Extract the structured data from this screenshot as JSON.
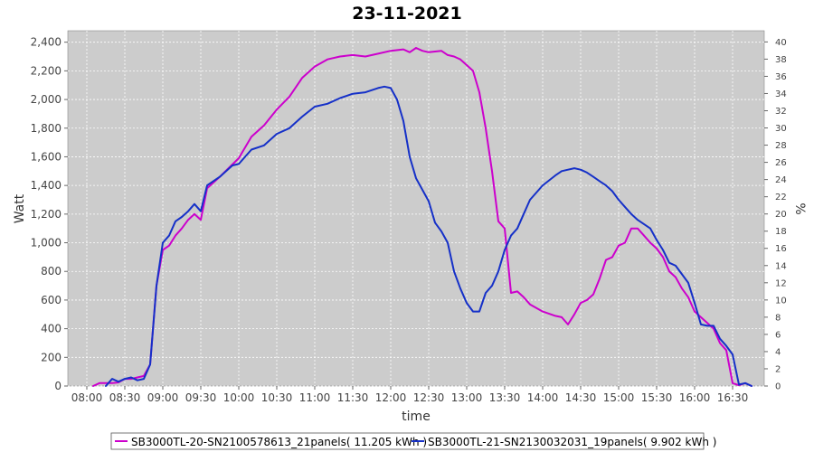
{
  "chart_data": {
    "type": "line",
    "title": "23-11-2021",
    "xlabel": "time",
    "ylabel": "Watt",
    "y2label": "%",
    "xlim": [
      "07:45",
      "16:55"
    ],
    "x_ticks": [
      "08:00",
      "08:30",
      "09:00",
      "09:30",
      "10:00",
      "10:30",
      "11:00",
      "11:30",
      "12:00",
      "12:30",
      "13:00",
      "13:30",
      "14:00",
      "14:30",
      "15:00",
      "15:30",
      "16:00",
      "16:30"
    ],
    "ylim": [
      0,
      2480
    ],
    "y_ticks": [
      "0",
      "200",
      "400",
      "600",
      "800",
      "1,000",
      "1,200",
      "1,400",
      "1,600",
      "1,800",
      "2,000",
      "2,200",
      "2,400"
    ],
    "y2lim": [
      0,
      41.3
    ],
    "y2_ticks": [
      "0",
      "2",
      "4",
      "6",
      "8",
      "10",
      "12",
      "14",
      "16",
      "18",
      "20",
      "22",
      "24",
      "26",
      "28",
      "30",
      "32",
      "34",
      "36",
      "38",
      "40"
    ],
    "grid": true,
    "legend_position": "bottom",
    "legend_entries": [
      "SB3000TL-20-SN2100578613_21panels( 11.205 kWh )",
      "SB3000TL-21-SN2130032031_19panels( 9.902 kWh )"
    ],
    "series": [
      {
        "name": "SB3000TL-20-SN2100578613_21panels( 11.205 kWh )",
        "color": "#cc00cc",
        "x": [
          "08:05",
          "08:10",
          "08:20",
          "08:25",
          "08:30",
          "08:35",
          "08:40",
          "08:45",
          "08:50",
          "08:55",
          "09:00",
          "09:05",
          "09:10",
          "09:15",
          "09:20",
          "09:25",
          "09:30",
          "09:35",
          "09:45",
          "10:00",
          "10:10",
          "10:20",
          "10:30",
          "10:40",
          "10:50",
          "11:00",
          "11:10",
          "11:20",
          "11:30",
          "11:40",
          "11:50",
          "12:00",
          "12:10",
          "12:15",
          "12:20",
          "12:25",
          "12:30",
          "12:40",
          "12:45",
          "12:50",
          "12:55",
          "13:00",
          "13:05",
          "13:10",
          "13:15",
          "13:20",
          "13:25",
          "13:30",
          "13:35",
          "13:40",
          "13:45",
          "13:50",
          "14:00",
          "14:10",
          "14:15",
          "14:20",
          "14:25",
          "14:30",
          "14:35",
          "14:40",
          "14:45",
          "14:50",
          "14:55",
          "15:00",
          "15:05",
          "15:10",
          "15:15",
          "15:20",
          "15:25",
          "15:30",
          "15:35",
          "15:40",
          "15:45",
          "15:50",
          "15:55",
          "16:00",
          "16:10",
          "16:15",
          "16:20",
          "16:25",
          "16:30",
          "16:35",
          "16:40",
          "16:45"
        ],
        "values": [
          0,
          20,
          20,
          25,
          50,
          50,
          60,
          70,
          150,
          700,
          950,
          980,
          1050,
          1100,
          1160,
          1200,
          1160,
          1380,
          1460,
          1590,
          1740,
          1820,
          1930,
          2020,
          2150,
          2230,
          2280,
          2300,
          2310,
          2300,
          2320,
          2340,
          2350,
          2330,
          2360,
          2340,
          2330,
          2340,
          2310,
          2300,
          2280,
          2240,
          2200,
          2050,
          1800,
          1500,
          1150,
          1100,
          650,
          660,
          620,
          570,
          520,
          490,
          480,
          430,
          500,
          580,
          600,
          640,
          750,
          880,
          900,
          980,
          1000,
          1100,
          1100,
          1050,
          1000,
          960,
          900,
          800,
          760,
          680,
          620,
          520,
          440,
          400,
          300,
          250,
          20,
          5,
          20,
          0
        ]
      },
      {
        "name": "SB3000TL-21-SN2130032031_19panels( 9.902 kWh )",
        "color": "#1530c8",
        "x": [
          "08:15",
          "08:20",
          "08:25",
          "08:30",
          "08:35",
          "08:40",
          "08:45",
          "08:50",
          "08:55",
          "09:00",
          "09:05",
          "09:10",
          "09:15",
          "09:20",
          "09:25",
          "09:30",
          "09:35",
          "09:45",
          "09:55",
          "10:00",
          "10:10",
          "10:20",
          "10:30",
          "10:40",
          "10:50",
          "11:00",
          "11:10",
          "11:20",
          "11:30",
          "11:40",
          "11:50",
          "11:55",
          "12:00",
          "12:05",
          "12:10",
          "12:15",
          "12:20",
          "12:30",
          "12:35",
          "12:40",
          "12:45",
          "12:50",
          "12:55",
          "13:00",
          "13:05",
          "13:10",
          "13:15",
          "13:20",
          "13:25",
          "13:30",
          "13:35",
          "13:40",
          "13:45",
          "13:50",
          "14:00",
          "14:10",
          "14:15",
          "14:20",
          "14:25",
          "14:30",
          "14:35",
          "14:40",
          "14:45",
          "14:50",
          "14:55",
          "15:00",
          "15:05",
          "15:10",
          "15:15",
          "15:20",
          "15:25",
          "15:30",
          "15:35",
          "15:40",
          "15:45",
          "15:50",
          "15:55",
          "16:00",
          "16:05",
          "16:10",
          "16:15",
          "16:20",
          "16:25",
          "16:30",
          "16:35",
          "16:40",
          "16:45"
        ],
        "values": [
          0,
          50,
          30,
          50,
          60,
          40,
          50,
          150,
          700,
          1000,
          1050,
          1150,
          1180,
          1220,
          1270,
          1220,
          1400,
          1460,
          1540,
          1550,
          1650,
          1680,
          1760,
          1800,
          1880,
          1950,
          1970,
          2010,
          2040,
          2050,
          2080,
          2090,
          2080,
          2000,
          1850,
          1600,
          1450,
          1290,
          1140,
          1080,
          1000,
          800,
          680,
          580,
          520,
          520,
          650,
          700,
          800,
          950,
          1050,
          1100,
          1200,
          1300,
          1400,
          1470,
          1500,
          1510,
          1520,
          1510,
          1490,
          1460,
          1430,
          1400,
          1360,
          1300,
          1250,
          1200,
          1160,
          1130,
          1100,
          1020,
          950,
          860,
          840,
          780,
          720,
          580,
          430,
          420,
          420,
          330,
          280,
          220,
          10,
          20,
          0
        ]
      }
    ]
  }
}
